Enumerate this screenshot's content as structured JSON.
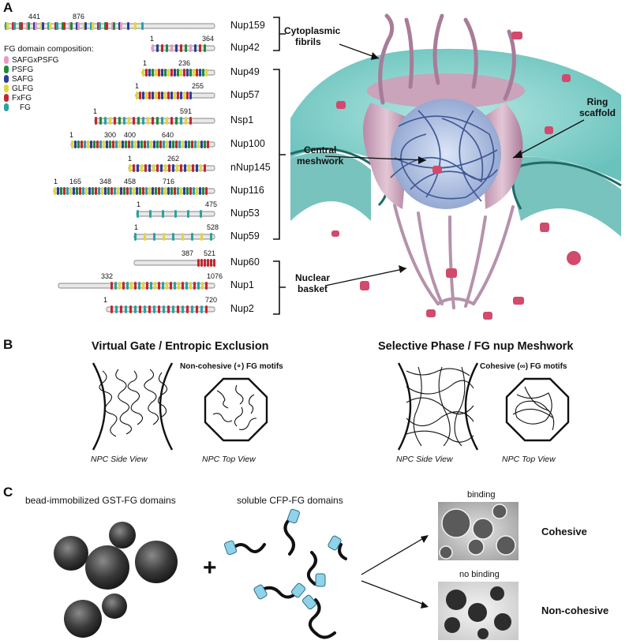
{
  "panels": {
    "a": "A",
    "b": "B",
    "c": "C"
  },
  "panel_a": {
    "legend_title": "FG domain composition:",
    "legend": [
      {
        "label": "SAFGxPSFG",
        "color": "#e89ac8"
      },
      {
        "label": "PSFG",
        "color": "#1f8a3a"
      },
      {
        "label": "SAFG",
        "color": "#2b3f9a"
      },
      {
        "label": "GLFG",
        "color": "#e3d63a"
      },
      {
        "label": "FxFG",
        "color": "#c4262e"
      },
      {
        "label": "FG",
        "color": "#2aa3a0"
      }
    ],
    "nups": [
      {
        "name": "Nup159",
        "numbers": [
          "441",
          "876"
        ]
      },
      {
        "name": "Nup42",
        "numbers": [
          "1",
          "364"
        ]
      },
      {
        "name": "Nup49",
        "numbers": [
          "1",
          "236"
        ]
      },
      {
        "name": "Nup57",
        "numbers": [
          "1",
          "255"
        ]
      },
      {
        "name": "Nsp1",
        "numbers": [
          "1",
          "591"
        ]
      },
      {
        "name": "Nup100",
        "numbers": [
          "1",
          "300",
          "400",
          "640"
        ]
      },
      {
        "name": "nNup145",
        "numbers": [
          "1",
          "262"
        ]
      },
      {
        "name": "Nup116",
        "numbers": [
          "1",
          "165",
          "348",
          "458",
          "716"
        ]
      },
      {
        "name": "Nup53",
        "numbers": [
          "1",
          "475"
        ]
      },
      {
        "name": "Nup59",
        "numbers": [
          "1",
          "528"
        ]
      },
      {
        "name": "Nup60",
        "numbers": [
          "387",
          "521"
        ]
      },
      {
        "name": "Nup1",
        "numbers": [
          "332",
          "1076"
        ]
      },
      {
        "name": "Nup2",
        "numbers": [
          "1",
          "720"
        ]
      }
    ],
    "annotations": {
      "cytoplasmic": [
        "Cytoplasmic",
        "fibrils"
      ],
      "ring": [
        "Ring",
        "scaffold"
      ],
      "central": [
        "Central",
        "meshwork"
      ],
      "basket": [
        "Nuclear",
        "basket"
      ]
    },
    "colors": {
      "membrane": "#7fd3cc",
      "npc": "#c49ab4",
      "mesh": "#5a6fa8",
      "cargo": "#d24a6c"
    }
  },
  "panel_b": {
    "left": {
      "title": "Virtual Gate / Entropic Exclusion",
      "subtitle": "Non-cohesive (∘) FG motifs",
      "side_view": "NPC Side View",
      "top_view": "NPC Top View"
    },
    "right": {
      "title": "Selective Phase / FG nup Meshwork",
      "subtitle": "Cohesive (∞) FG motifs",
      "side_view": "NPC Side View",
      "top_view": "NPC Top View"
    }
  },
  "panel_c": {
    "bead_label": "bead-immobilized GST-FG domains",
    "soluble_label": "soluble CFP-FG domains",
    "plus": "+",
    "binding": "binding",
    "no_binding": "no binding",
    "cohesive": "Cohesive",
    "noncohesive": "Non-cohesive",
    "colors": {
      "cfp": "#8fd3ea"
    }
  }
}
